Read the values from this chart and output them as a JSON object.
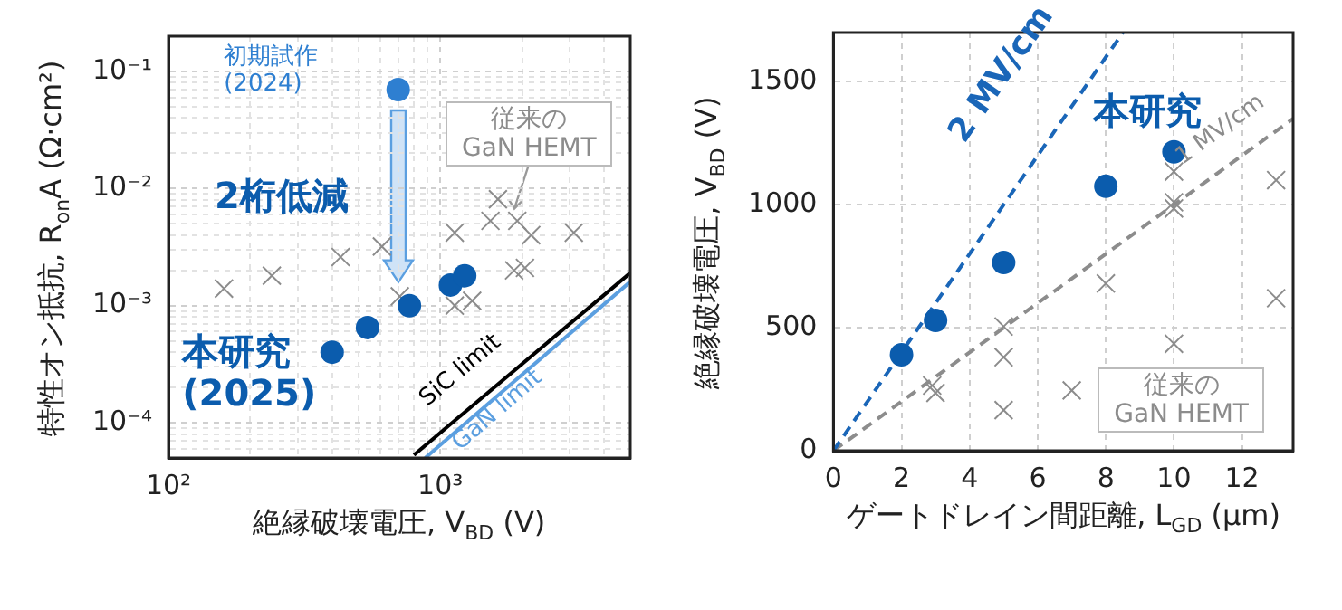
{
  "chart_data": [
    {
      "type": "scatter",
      "xlabel": "絶縁破壊電圧, V$_{BD}$ (V)",
      "ylabel": "特性オン抵抗, R$_{on}$A (Ω·cm²)",
      "log": "xy",
      "xlim": [
        100,
        5000
      ],
      "ylim": [
        5e-05,
        0.2
      ],
      "xticks": [
        {
          "value": 100,
          "label": "10²"
        },
        {
          "value": 200,
          "label": null
        },
        {
          "value": 300,
          "label": null
        },
        {
          "value": 400,
          "label": null
        },
        {
          "value": 500,
          "label": null
        },
        {
          "value": 600,
          "label": null
        },
        {
          "value": 700,
          "label": null
        },
        {
          "value": 800,
          "label": null
        },
        {
          "value": 900,
          "label": null
        },
        {
          "value": 1000,
          "label": "10³"
        },
        {
          "value": 2000,
          "label": null
        },
        {
          "value": 3000,
          "label": null
        },
        {
          "value": 4000,
          "label": null
        }
      ],
      "yticks": [
        {
          "value": 6e-05,
          "label": null
        },
        {
          "value": 7e-05,
          "label": null
        },
        {
          "value": 8e-05,
          "label": null
        },
        {
          "value": 9e-05,
          "label": null
        },
        {
          "value": 0.0001,
          "label": "10⁻⁴"
        },
        {
          "value": 0.0002,
          "label": null
        },
        {
          "value": 0.0003,
          "label": null
        },
        {
          "value": 0.0004,
          "label": null
        },
        {
          "value": 0.0005,
          "label": null
        },
        {
          "value": 0.0006,
          "label": null
        },
        {
          "value": 0.0007,
          "label": null
        },
        {
          "value": 0.0008,
          "label": null
        },
        {
          "value": 0.0009,
          "label": null
        },
        {
          "value": 0.001,
          "label": "10⁻³"
        },
        {
          "value": 0.002,
          "label": null
        },
        {
          "value": 0.003,
          "label": null
        },
        {
          "value": 0.004,
          "label": null
        },
        {
          "value": 0.005,
          "label": null
        },
        {
          "value": 0.006,
          "label": null
        },
        {
          "value": 0.007,
          "label": null
        },
        {
          "value": 0.008,
          "label": null
        },
        {
          "value": 0.009,
          "label": null
        },
        {
          "value": 0.01,
          "label": "10⁻²"
        },
        {
          "value": 0.02,
          "label": null
        },
        {
          "value": 0.03,
          "label": null
        },
        {
          "value": 0.04,
          "label": null
        },
        {
          "value": 0.05,
          "label": null
        },
        {
          "value": 0.06,
          "label": null
        },
        {
          "value": 0.07,
          "label": null
        },
        {
          "value": 0.08,
          "label": null
        },
        {
          "value": 0.09,
          "label": null
        },
        {
          "value": 0.1,
          "label": "10⁻¹"
        }
      ],
      "grid": true,
      "annotations": [
        "2桁低減"
      ],
      "series": [
        {
          "name": "本研究\n(2025)",
          "type": "scatter",
          "marker": "circle",
          "color": "#0b5cad",
          "x": [
            400,
            540,
            770,
            1090,
            1230
          ],
          "values": [
            0.0004,
            0.00065,
            0.001,
            0.0015,
            0.0018
          ]
        },
        {
          "name": "初期試作\n(2024)",
          "type": "scatter",
          "marker": "circle",
          "color": "#2e7fd1",
          "x": [
            700
          ],
          "values": [
            0.07
          ]
        },
        {
          "name": "従来の\nGaN HEMT",
          "type": "scatter",
          "marker": "cross",
          "color": "#8c8c8c",
          "x": [
            160,
            240,
            430,
            610,
            710,
            1130,
            1130,
            1310,
            1530,
            1630,
            1920,
            2160,
            1870,
            2050,
            3100
          ],
          "values": [
            0.0014,
            0.0018,
            0.0026,
            0.0032,
            0.0012,
            0.0042,
            0.001,
            0.0011,
            0.0053,
            0.0081,
            0.0053,
            0.004,
            0.002,
            0.0021,
            0.0042
          ]
        },
        {
          "name": "SiC limit",
          "type": "line",
          "marker": "none",
          "line_style": "solid",
          "color": "#000000",
          "x": [
            800,
            5000
          ],
          "values": [
            5.3e-05,
            0.0019
          ]
        },
        {
          "name": "GaN limit",
          "type": "line",
          "marker": "none",
          "line_style": "solid",
          "color": "#5b9fe0",
          "x": [
            880,
            5000
          ],
          "values": [
            5e-05,
            0.0016
          ]
        }
      ]
    },
    {
      "type": "scatter",
      "xlabel": "ゲートドレイン間距離, L$_{GD}$ (μm)",
      "ylabel": "絶縁破壊電圧, V$_{BD}$ (V)",
      "xlim": [
        0,
        13.5
      ],
      "ylim": [
        0,
        1700
      ],
      "xticks": [
        0,
        2,
        4,
        6,
        8,
        10,
        12
      ],
      "yticks": [
        0,
        500,
        1000,
        1500
      ],
      "grid": true,
      "series": [
        {
          "name": "本研究",
          "type": "scatter",
          "marker": "circle",
          "color": "#0b5cad",
          "x": [
            2,
            3,
            5,
            8,
            10
          ],
          "values": [
            390,
            530,
            765,
            1075,
            1215
          ]
        },
        {
          "name": "従来の\nGaN HEMT",
          "type": "scatter",
          "marker": "cross",
          "color": "#8c8c8c",
          "x": [
            2.9,
            3,
            5,
            5,
            5,
            7,
            8,
            10,
            10,
            10,
            10,
            13,
            13
          ],
          "values": [
            265,
            235,
            505,
            380,
            165,
            245,
            680,
            1135,
            1010,
            985,
            435,
            1100,
            620
          ]
        },
        {
          "name": "2 MV/cm",
          "type": "line",
          "marker": "none",
          "line_style": "dashed",
          "color": "#1a66b8",
          "x": [
            0,
            8.5
          ],
          "values": [
            0,
            1700
          ]
        },
        {
          "name": "1 MV/cm",
          "type": "line",
          "marker": "none",
          "line_style": "dashed",
          "color": "#8c8c8c",
          "x": [
            0,
            13.5
          ],
          "values": [
            0,
            1350
          ]
        }
      ]
    }
  ]
}
